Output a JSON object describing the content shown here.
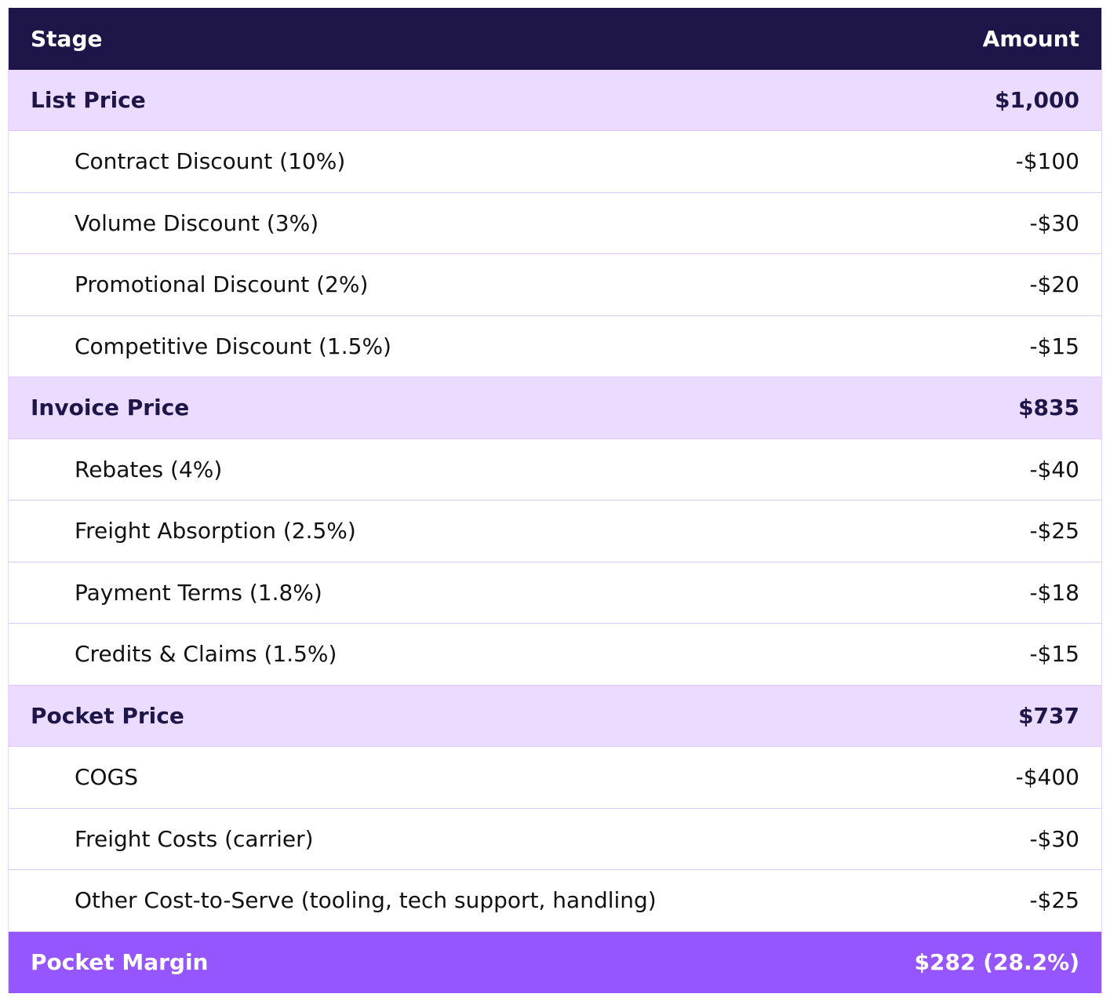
{
  "table": {
    "header": [
      "Stage",
      "Amount"
    ],
    "rows": [
      [
        "List Price",
        "$1,000"
      ],
      [
        "Contract Discount (10%)",
        "-$100"
      ],
      [
        "Volume Discount (3%)",
        "-$30"
      ],
      [
        "Promotional Discount (2%)",
        "-$20"
      ],
      [
        "Competitive Discount (1.5%)",
        "-$15"
      ],
      [
        "Invoice Price",
        "$835"
      ],
      [
        "Rebates (4%)",
        "-$40"
      ],
      [
        "Freight Absorption (2.5%)",
        "-$25"
      ],
      [
        "Payment Terms (1.8%)",
        "-$18"
      ],
      [
        "Credits & Claims (1.5%)",
        "-$15"
      ],
      [
        "Pocket Price",
        "$737"
      ],
      [
        "COGS",
        "-$400"
      ],
      [
        "Freight Costs (carrier)",
        "-$30"
      ],
      [
        "Other Cost-to-Serve (tooling, tech support, handling)",
        "-$25"
      ],
      [
        "Pocket Margin",
        "$282 (28.2%)"
      ]
    ]
  }
}
